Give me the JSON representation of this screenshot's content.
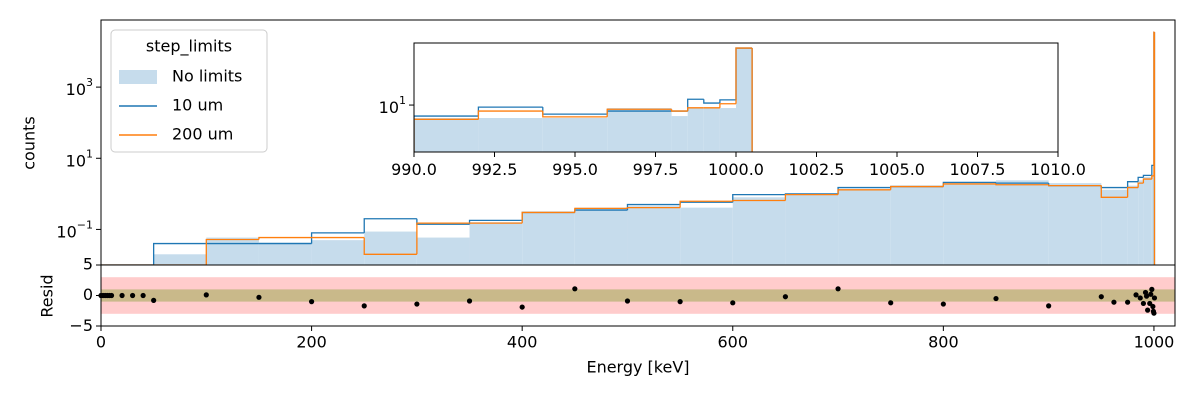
{
  "chart_data": [
    {
      "type": "histogram",
      "ylabel": "counts",
      "log_y": true,
      "xlim": [
        0,
        1020
      ],
      "ylim": [
        0.01,
        77000
      ],
      "yticks": [
        {
          "value": 0.1,
          "label": "10",
          "exponent": "−1"
        },
        {
          "value": 10,
          "label": "10",
          "exponent": "1"
        },
        {
          "value": 1000,
          "label": "10",
          "exponent": "3"
        }
      ],
      "legend_title": "step_limits",
      "legend_corner": "upper left",
      "bins": [
        0,
        50,
        100,
        150,
        200,
        250,
        300,
        350,
        400,
        450,
        500,
        550,
        600,
        650,
        700,
        750,
        800,
        850,
        900,
        950,
        975,
        985,
        990,
        998,
        1000,
        1000.5
      ],
      "series": [
        {
          "name": "No limits",
          "style": "fill",
          "color": "#c6dcec",
          "values": [
            0,
            0.02,
            0.059,
            0.043,
            0.05,
            0.087,
            0.059,
            0.16,
            0.3,
            0.41,
            0.45,
            0.41,
            0.8,
            1.0,
            1.3,
            1.7,
            2.1,
            2.4,
            2.0,
            1.3,
            1.7,
            2.4,
            3.0,
            3.3,
            29000
          ]
        },
        {
          "name": "10 um",
          "style": "step",
          "color": "#1f77b4",
          "values": [
            0,
            0.04,
            0.04,
            0.04,
            0.08,
            0.2,
            0.14,
            0.18,
            0.3,
            0.35,
            0.5,
            0.58,
            0.95,
            1.0,
            1.5,
            1.6,
            2.1,
            2.0,
            1.7,
            1.5,
            2.2,
            2.9,
            3.3,
            6.3,
            35000
          ]
        },
        {
          "name": "200 um",
          "style": "step",
          "color": "#ff7f0e",
          "values": [
            0,
            0,
            0.052,
            0.059,
            0.059,
            0.02,
            0.15,
            0.15,
            0.3,
            0.39,
            0.41,
            0.62,
            0.65,
            0.95,
            1.3,
            1.6,
            1.9,
            1.8,
            1.7,
            0.8,
            1.5,
            2.0,
            2.6,
            3.2,
            35000
          ]
        }
      ]
    },
    {
      "type": "histogram",
      "log_y": true,
      "xlim": [
        990,
        1010
      ],
      "ylim": [
        5,
        25
      ],
      "xticks": [
        {
          "value": 990,
          "label": "990.0"
        },
        {
          "value": 992.5,
          "label": "992.5"
        },
        {
          "value": 995,
          "label": "995.0"
        },
        {
          "value": 997.5,
          "label": "997.5"
        },
        {
          "value": 1000,
          "label": "1000.0"
        },
        {
          "value": 1002.5,
          "label": "1002.5"
        },
        {
          "value": 1005,
          "label": "1005.0"
        },
        {
          "value": 1007.5,
          "label": "1007.5"
        },
        {
          "value": 1010,
          "label": "1010.0"
        }
      ],
      "yticks": [
        {
          "value": 10,
          "label": "10",
          "exponent": "1"
        }
      ],
      "bins": [
        990,
        992,
        994,
        996,
        998,
        998.5,
        999,
        999.5,
        1000,
        1000.5
      ],
      "series": [
        {
          "style": "fill",
          "color": "#c6dcec",
          "values": [
            8.26,
            8.26,
            8.26,
            9.57,
            8.5,
            9.57,
            9.57,
            9.57,
            23.2
          ]
        },
        {
          "style": "step",
          "color": "#1f77b4",
          "values": [
            8.5,
            9.7,
            8.75,
            9.15,
            9.15,
            10.9,
            10.3,
            10.8,
            23.2
          ]
        },
        {
          "style": "step",
          "color": "#ff7f0e",
          "values": [
            8.1,
            9.15,
            8.4,
            9.4,
            9.15,
            9.6,
            9.6,
            10.2,
            23.2
          ]
        }
      ]
    },
    {
      "type": "scatter",
      "xlabel": "Energy [keV]",
      "ylabel": "Resid",
      "xlim": [
        0,
        1020
      ],
      "ylim": [
        -5,
        5
      ],
      "xticks": [
        0,
        200,
        400,
        600,
        800,
        1000
      ],
      "yticks": [
        {
          "value": -5,
          "label": "−5"
        },
        0,
        5
      ],
      "bands": [
        {
          "sigma": 3,
          "color": "#ffcccc"
        },
        {
          "sigma": 1,
          "color": "#c9b98a"
        }
      ],
      "color": "#000000",
      "x": [
        0,
        2,
        4,
        6,
        8,
        10,
        20,
        30,
        40,
        50,
        100,
        150,
        200,
        250,
        300,
        350,
        400,
        450,
        500,
        550,
        600,
        650,
        700,
        750,
        800,
        850,
        900,
        950,
        962,
        975,
        983,
        987,
        990,
        992,
        993,
        994,
        996,
        997,
        998,
        999,
        999.5,
        1000,
        1000.5
      ],
      "values": [
        0,
        0,
        0,
        0,
        0,
        0,
        0,
        0,
        0,
        -0.8,
        0.1,
        -0.3,
        -1.0,
        -1.7,
        -1.4,
        -0.9,
        -1.9,
        1.1,
        -0.9,
        -1.0,
        -1.2,
        -0.2,
        1.1,
        -1.2,
        -1.4,
        -0.5,
        -1.7,
        -0.2,
        -1.1,
        -1.1,
        0.1,
        -0.4,
        -1.3,
        0.5,
        -0.1,
        -2.4,
        -1.3,
        0.2,
        1.0,
        -1.8,
        -2.6,
        -2.9,
        -0.4
      ]
    }
  ]
}
